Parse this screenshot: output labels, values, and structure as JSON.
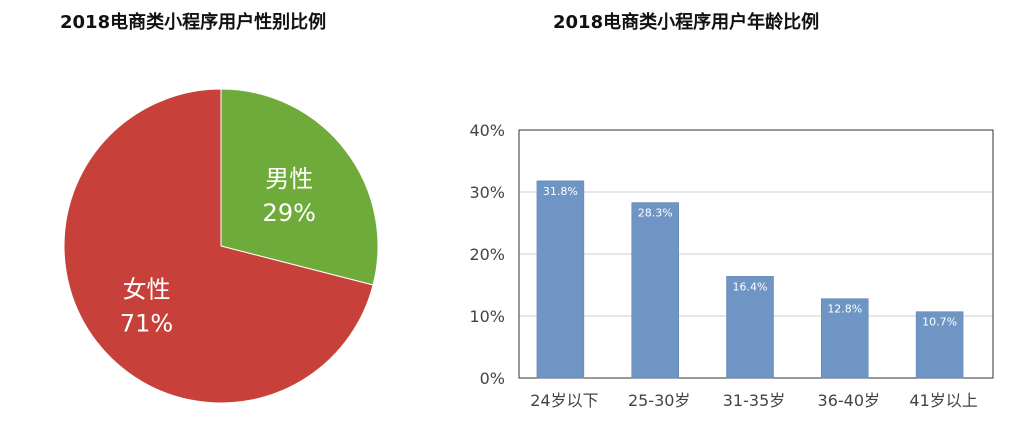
{
  "chart_data": [
    {
      "type": "pie",
      "title": "2018电商类小程序用户性别比例",
      "slices": [
        {
          "name": "男性",
          "value": 29,
          "label": "29%",
          "color": "#6eab3a"
        },
        {
          "name": "女性",
          "value": 71,
          "label": "71%",
          "color": "#c8403a"
        }
      ]
    },
    {
      "type": "bar",
      "title": "2018电商类小程序用户年龄比例",
      "categories": [
        "24岁以下",
        "25-30岁",
        "31-35岁",
        "36-40岁",
        "41岁以上"
      ],
      "values": [
        31.8,
        28.3,
        16.4,
        12.8,
        10.7
      ],
      "data_labels": [
        "31.8%",
        "28.3%",
        "16.4%",
        "12.8%",
        "10.7%"
      ],
      "yticks": [
        "0%",
        "10%",
        "20%",
        "30%",
        "40%"
      ],
      "ylim": [
        0,
        40
      ],
      "grid": true,
      "bar_color": "#6f95c4"
    }
  ]
}
